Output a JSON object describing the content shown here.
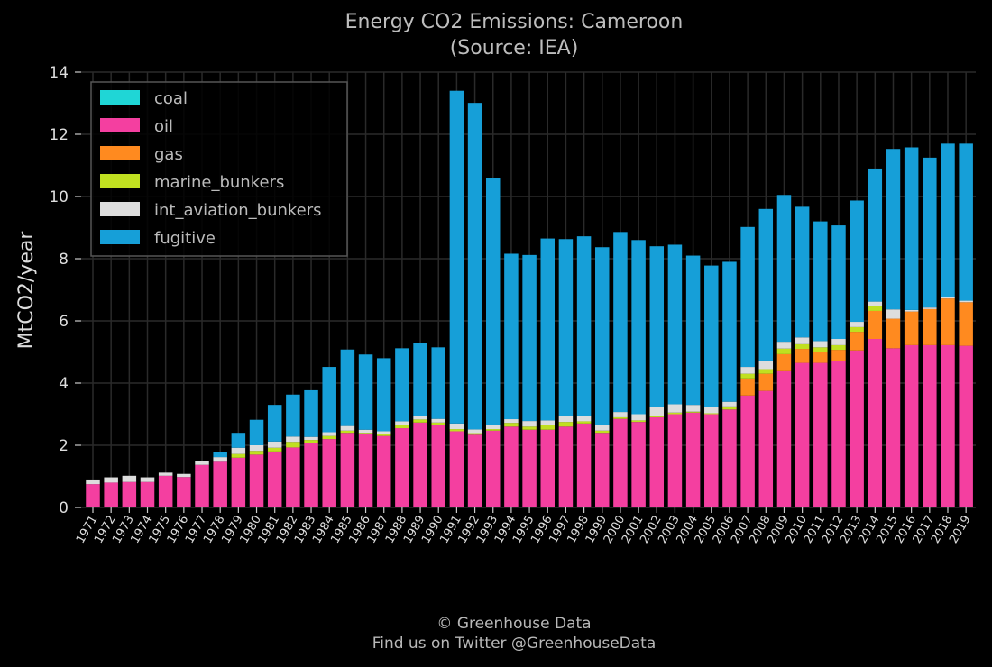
{
  "chart_data": {
    "type": "bar",
    "stacked": true,
    "title": "Energy CO2 Emissions: Cameroon",
    "subtitle": "(Source: IEA)",
    "xlabel": "",
    "ylabel": "MtCO2/year",
    "ylim": [
      0,
      14
    ],
    "yticks": [
      0,
      2,
      4,
      6,
      8,
      10,
      12,
      14
    ],
    "grid": true,
    "legend_position": "top-left",
    "categories": [
      "1971",
      "1972",
      "1973",
      "1974",
      "1975",
      "1976",
      "1977",
      "1978",
      "1979",
      "1980",
      "1981",
      "1982",
      "1983",
      "1984",
      "1985",
      "1986",
      "1987",
      "1988",
      "1989",
      "1990",
      "1991",
      "1992",
      "1993",
      "1994",
      "1995",
      "1996",
      "1997",
      "1998",
      "1999",
      "2000",
      "2001",
      "2002",
      "2003",
      "2004",
      "2005",
      "2006",
      "2007",
      "2008",
      "2009",
      "2010",
      "2011",
      "2012",
      "2013",
      "2014",
      "2015",
      "2016",
      "2017",
      "2018",
      "2019"
    ],
    "series": [
      {
        "name": "coal",
        "color": "#1fd6d6",
        "values": [
          0,
          0,
          0,
          0,
          0,
          0,
          0,
          0,
          0,
          0,
          0,
          0,
          0,
          0,
          0,
          0,
          0,
          0,
          0,
          0,
          0,
          0,
          0,
          0,
          0,
          0,
          0,
          0,
          0,
          0,
          0,
          0,
          0,
          0,
          0,
          0,
          0,
          0,
          0,
          0,
          0,
          0,
          0,
          0,
          0,
          0,
          0,
          0,
          0
        ]
      },
      {
        "name": "oil",
        "color": "#f43fa0",
        "values": [
          0.75,
          0.8,
          0.82,
          0.82,
          1.02,
          0.98,
          1.37,
          1.47,
          1.6,
          1.7,
          1.8,
          1.93,
          2.07,
          2.2,
          2.4,
          2.35,
          2.3,
          2.55,
          2.73,
          2.66,
          2.45,
          2.34,
          2.47,
          2.6,
          2.5,
          2.5,
          2.6,
          2.7,
          2.4,
          2.85,
          2.75,
          2.9,
          3.0,
          3.05,
          3.0,
          3.15,
          3.6,
          3.75,
          4.38,
          4.65,
          4.65,
          4.72,
          5.05,
          5.42,
          5.12,
          5.22,
          5.22,
          5.22,
          5.2
        ]
      },
      {
        "name": "gas",
        "color": "#ff8a1f",
        "values": [
          0,
          0,
          0,
          0,
          0,
          0,
          0,
          0,
          0,
          0,
          0,
          0,
          0,
          0,
          0,
          0,
          0,
          0,
          0,
          0,
          0,
          0,
          0,
          0,
          0,
          0,
          0,
          0,
          0,
          0,
          0,
          0,
          0,
          0,
          0,
          0,
          0.55,
          0.55,
          0.55,
          0.45,
          0.35,
          0.35,
          0.6,
          0.9,
          0.95,
          1.08,
          1.16,
          1.5,
          1.4
        ]
      },
      {
        "name": "marine_bunkers",
        "color": "#c0e020",
        "values": [
          0,
          0,
          0,
          0,
          0,
          0,
          0,
          0,
          0.12,
          0.12,
          0.12,
          0.18,
          0.1,
          0.1,
          0.07,
          0.05,
          0.05,
          0.1,
          0.1,
          0.07,
          0.07,
          0.05,
          0.05,
          0.12,
          0.1,
          0.15,
          0.15,
          0.07,
          0.07,
          0.05,
          0.05,
          0.05,
          0.05,
          0.03,
          0.03,
          0.1,
          0.15,
          0.15,
          0.18,
          0.15,
          0.15,
          0.15,
          0.15,
          0.15,
          0,
          0,
          0,
          0,
          0
        ]
      },
      {
        "name": "int_aviation_bunkers",
        "color": "#dddddd",
        "values": [
          0.15,
          0.17,
          0.2,
          0.15,
          0.1,
          0.1,
          0.13,
          0.15,
          0.2,
          0.18,
          0.2,
          0.17,
          0.1,
          0.12,
          0.15,
          0.1,
          0.1,
          0.12,
          0.12,
          0.12,
          0.18,
          0.12,
          0.12,
          0.12,
          0.18,
          0.15,
          0.18,
          0.17,
          0.18,
          0.17,
          0.2,
          0.27,
          0.27,
          0.22,
          0.2,
          0.15,
          0.22,
          0.25,
          0.22,
          0.22,
          0.2,
          0.2,
          0.17,
          0.15,
          0.3,
          0.05,
          0.05,
          0.05,
          0.05
        ]
      },
      {
        "name": "fugitive",
        "color": "#169fd8",
        "values": [
          0,
          0,
          0,
          0,
          0,
          0,
          0,
          0.15,
          0.48,
          0.82,
          1.18,
          1.35,
          1.5,
          2.1,
          2.46,
          2.42,
          2.35,
          2.35,
          2.35,
          2.3,
          10.7,
          10.5,
          7.94,
          5.32,
          5.34,
          5.85,
          5.7,
          5.78,
          5.72,
          5.79,
          5.6,
          5.18,
          5.13,
          4.8,
          4.55,
          4.5,
          4.5,
          4.9,
          4.72,
          4.2,
          3.85,
          3.65,
          3.9,
          4.28,
          5.16,
          5.23,
          4.82,
          4.93,
          5.05
        ]
      }
    ]
  },
  "footer": {
    "line1": "© Greenhouse Data",
    "line2": "Find us on Twitter @GreenhouseData"
  }
}
